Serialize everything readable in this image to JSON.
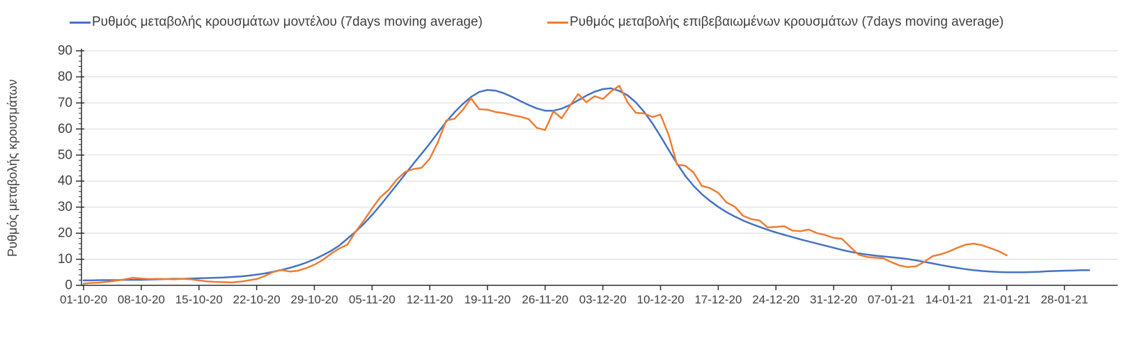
{
  "background": "#ffffff",
  "legend": {
    "items": [
      {
        "label": "Ρυθμός μεταβολής κρουσμάτων μοντέλου (7days moving average)",
        "color": "#4472C4"
      },
      {
        "label": "Ρυθμός μεταβολής επιβεβαιωμένων κρουσμάτων (7days moving average)",
        "color": "#ED7D31"
      }
    ]
  },
  "axis_style": {
    "axis_line_color": "#2b2b2b",
    "gridline_color": "#d9d9d9",
    "tick_label_color": "#404040"
  },
  "chart_data": {
    "type": "line",
    "title": "",
    "xlabel": "",
    "ylabel": "Ρυθμός μεταβολής κρουσμάτων",
    "ylim": [
      0,
      90
    ],
    "y_ticks": [
      0,
      10,
      20,
      30,
      40,
      50,
      60,
      70,
      80,
      90
    ],
    "y_minor_tick_step": 2,
    "grid": "horizontal-major",
    "legend_position": "top",
    "x_frequency": "daily",
    "x_start": "01-10-20",
    "x_tick_labels": [
      "01-10-20",
      "08-10-20",
      "15-10-20",
      "22-10-20",
      "29-10-20",
      "05-11-20",
      "12-11-20",
      "19-11-20",
      "26-11-20",
      "03-12-20",
      "10-12-20",
      "17-12-20",
      "24-12-20",
      "31-12-20",
      "07-01-21",
      "14-01-21",
      "21-01-21",
      "28-01-21"
    ],
    "x_tick_every_days": 7,
    "series": [
      {
        "name": "Ρυθμός μεταβολής κρουσμάτων μοντέλου (7days moving average)",
        "color": "#4472C4",
        "values": [
          1.9,
          1.9,
          2.0,
          2.0,
          2.0,
          2.1,
          2.1,
          2.1,
          2.2,
          2.3,
          2.4,
          2.5,
          2.5,
          2.6,
          2.7,
          2.8,
          2.9,
          3.0,
          3.2,
          3.4,
          3.7,
          4.1,
          4.6,
          5.2,
          5.9,
          6.7,
          7.6,
          8.7,
          10.0,
          11.5,
          13.2,
          15.2,
          17.9,
          20.6,
          23.6,
          27.0,
          30.7,
          34.6,
          38.6,
          42.6,
          46.6,
          50.5,
          54.4,
          58.6,
          62.8,
          66.4,
          69.6,
          72.3,
          74.2,
          75.0,
          74.7,
          73.7,
          72.3,
          70.7,
          69.2,
          67.9,
          67.0,
          67.0,
          67.8,
          69.2,
          71.0,
          72.8,
          74.3,
          75.3,
          75.6,
          74.6,
          72.9,
          70.2,
          66.6,
          62.2,
          57.2,
          51.9,
          46.7,
          42.0,
          38.2,
          35.0,
          32.4,
          30.1,
          28.1,
          26.4,
          24.9,
          23.6,
          22.4,
          21.3,
          20.3,
          19.4,
          18.5,
          17.6,
          16.8,
          16.0,
          15.2,
          14.4,
          13.6,
          12.9,
          12.3,
          11.8,
          11.4,
          11.1,
          10.8,
          10.5,
          10.1,
          9.6,
          9.0,
          8.4,
          7.8,
          7.2,
          6.7,
          6.2,
          5.8,
          5.5,
          5.3,
          5.1,
          5.0,
          5.0,
          5.0,
          5.1,
          5.2,
          5.4,
          5.5,
          5.6,
          5.7,
          5.8,
          5.8
        ]
      },
      {
        "name": "Ρυθμός μεταβολής επιβεβαιωμένων κρουσμάτων (7days moving average)",
        "color": "#ED7D31",
        "values": [
          0.7,
          0.9,
          1.1,
          1.4,
          1.8,
          2.3,
          2.9,
          2.6,
          2.4,
          2.5,
          2.4,
          2.3,
          2.5,
          2.3,
          1.9,
          1.5,
          1.3,
          1.2,
          1.1,
          1.4,
          1.9,
          2.4,
          3.6,
          5.1,
          5.9,
          5.3,
          5.6,
          6.6,
          7.9,
          9.7,
          12.1,
          14.1,
          15.6,
          20.6,
          24.8,
          29.5,
          33.8,
          36.6,
          40.6,
          43.5,
          44.6,
          45.1,
          48.6,
          55.0,
          63.3,
          63.9,
          67.3,
          71.8,
          67.6,
          67.4,
          66.5,
          66.1,
          65.3,
          64.7,
          63.8,
          60.4,
          59.6,
          66.8,
          64.1,
          68.9,
          73.4,
          70.3,
          72.6,
          71.5,
          74.4,
          76.6,
          70.2,
          66.2,
          66.0,
          64.6,
          65.5,
          57.5,
          46.3,
          45.9,
          43.3,
          38.2,
          37.3,
          35.5,
          31.8,
          30.2,
          26.7,
          25.4,
          24.9,
          22.2,
          22.4,
          22.7,
          21.0,
          20.8,
          21.4,
          20.0,
          19.3,
          18.2,
          17.9,
          14.8,
          11.8,
          10.9,
          10.6,
          10.4,
          8.9,
          7.6,
          7.0,
          7.3,
          9.0,
          11.2,
          11.9,
          13.0,
          14.4,
          15.6,
          16.0,
          15.4,
          14.3,
          13.1,
          11.5
        ]
      }
    ]
  }
}
